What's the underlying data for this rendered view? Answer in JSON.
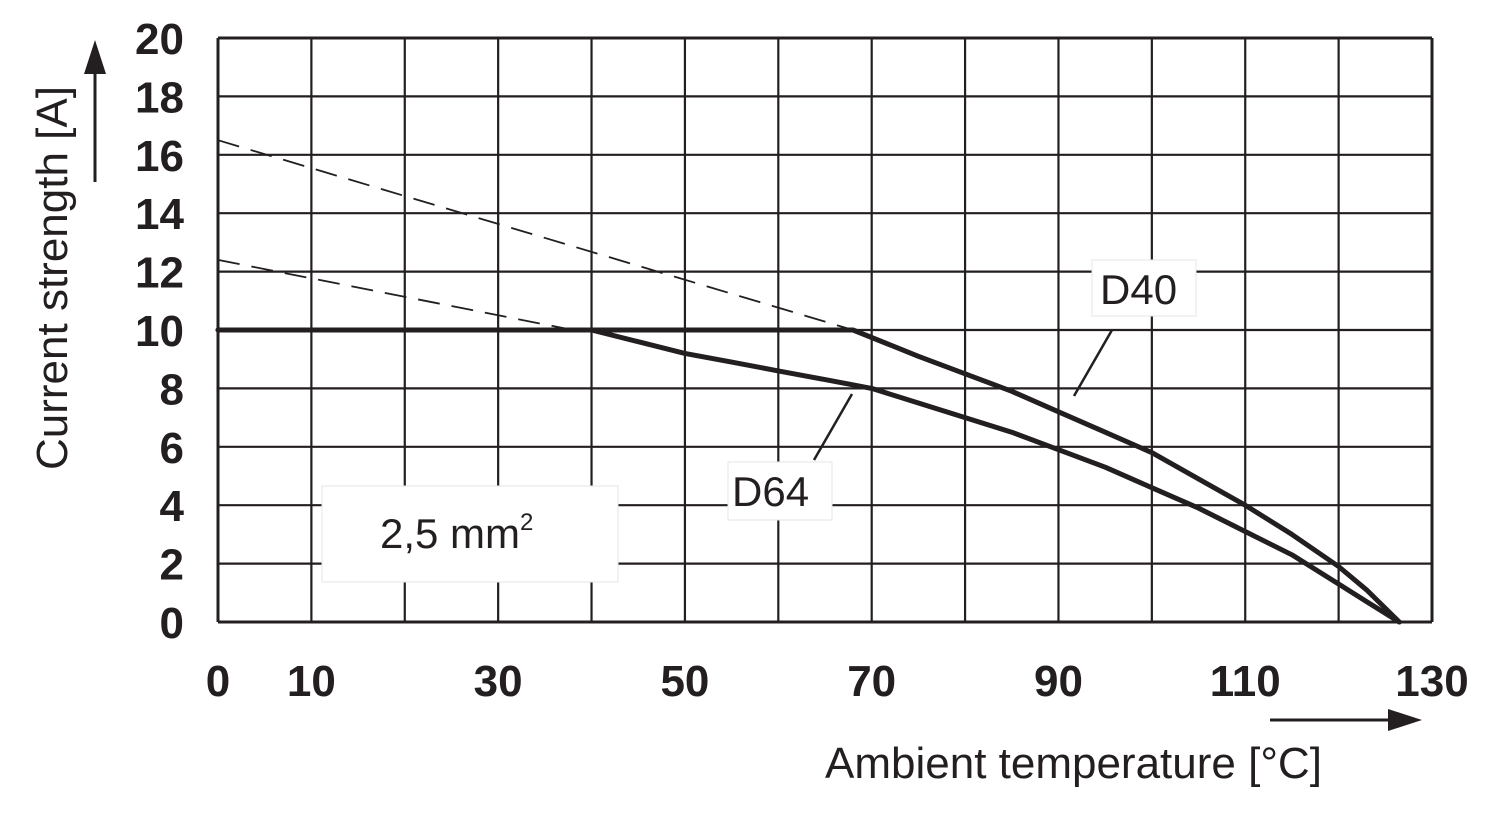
{
  "chart_data": {
    "type": "line",
    "xlabel": "Ambient temperature [°C]",
    "ylabel": "Current strength [A]",
    "xlim": [
      0,
      130
    ],
    "ylim": [
      0,
      20
    ],
    "x_ticks": [
      "0",
      "10",
      "30",
      "50",
      "70",
      "90",
      "110",
      "130"
    ],
    "y_ticks": [
      "0",
      "2",
      "4",
      "6",
      "8",
      "10",
      "12",
      "14",
      "16",
      "18",
      "20"
    ],
    "grid": true,
    "annotation": {
      "text": "2,5 mm",
      "sup": "2"
    },
    "series": [
      {
        "name": "D40",
        "values": [
          [
            0,
            10
          ],
          [
            68,
            10
          ],
          [
            75,
            9.1
          ],
          [
            80,
            8.5
          ],
          [
            85,
            7.9
          ],
          [
            90,
            7.2
          ],
          [
            95,
            6.5
          ],
          [
            100,
            5.8
          ],
          [
            105,
            4.9
          ],
          [
            110,
            4.0
          ],
          [
            115,
            3.0
          ],
          [
            120,
            1.9
          ],
          [
            123,
            1.1
          ],
          [
            126.5,
            0
          ]
        ],
        "extrapolation": [
          [
            0,
            16.5
          ],
          [
            68,
            10
          ]
        ]
      },
      {
        "name": "D64",
        "values": [
          [
            0,
            10
          ],
          [
            40,
            10
          ],
          [
            45,
            9.6
          ],
          [
            50,
            9.2
          ],
          [
            55,
            8.9
          ],
          [
            60,
            8.6
          ],
          [
            65,
            8.3
          ],
          [
            70,
            8.0
          ],
          [
            75,
            7.5
          ],
          [
            80,
            7.0
          ],
          [
            85,
            6.5
          ],
          [
            90,
            5.9
          ],
          [
            95,
            5.3
          ],
          [
            100,
            4.6
          ],
          [
            105,
            3.9
          ],
          [
            110,
            3.1
          ],
          [
            115,
            2.3
          ],
          [
            120,
            1.3
          ],
          [
            123,
            0.7
          ],
          [
            126.5,
            0
          ]
        ],
        "extrapolation": [
          [
            0,
            12.4
          ],
          [
            38,
            10
          ]
        ]
      }
    ]
  }
}
